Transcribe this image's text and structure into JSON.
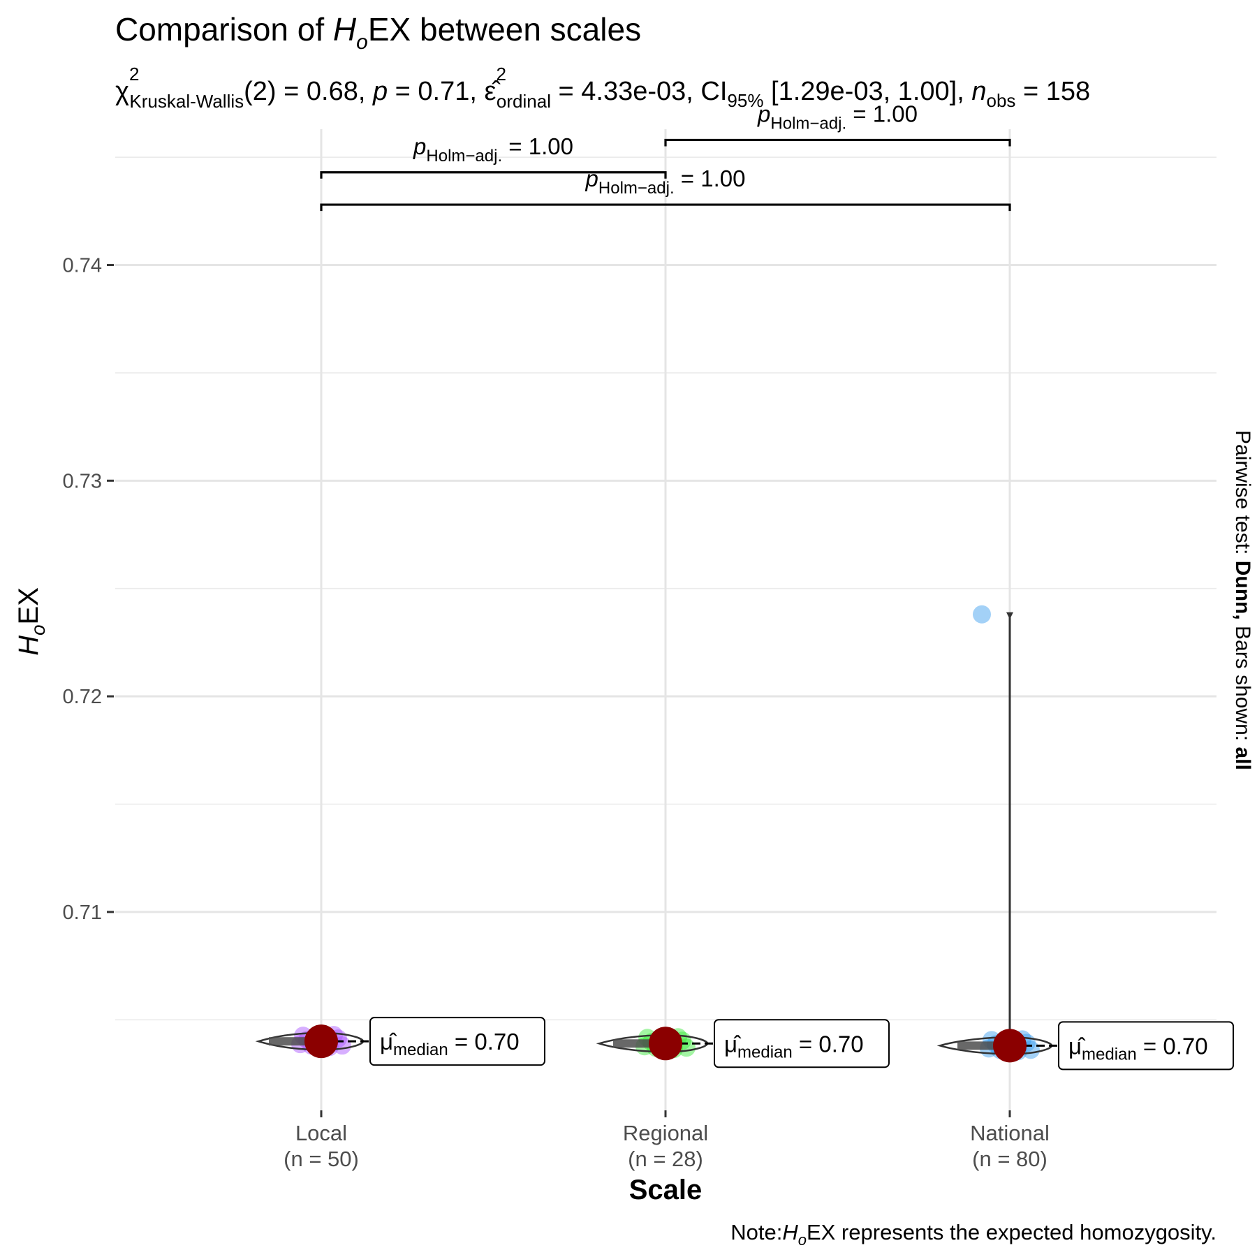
{
  "chart_data": {
    "type": "violin",
    "title": "Comparison of HₒEX between scales",
    "subtitle": "χ²Kruskal-Wallis(2) = 0.68, p = 0.71, ε̂²ordinal = 4.33e-03, CI95% [1.29e-03, 1.00], nobs = 158",
    "xlabel": "Scale",
    "ylabel": "HₒEX",
    "caption": "Note:HₒEX represents the expected homozygosity.",
    "side_label": "Pairwise test: Dunn, Bars shown: all",
    "ylim": [
      0.7008,
      0.7463
    ],
    "yticks": [
      0.71,
      0.72,
      0.73,
      0.74
    ],
    "ytick_labels": [
      "0.71",
      "0.72",
      "0.73",
      "0.74"
    ],
    "grid": true,
    "categories": [
      {
        "name": "Local",
        "n_label": "(n = 50)",
        "median": 0.704,
        "median_label": "μ̂median = 0.70",
        "color": "#a64dff"
      },
      {
        "name": "Regional",
        "n_label": "(n = 28)",
        "median": 0.7039,
        "median_label": "μ̂median = 0.70",
        "color": "#33e633"
      },
      {
        "name": "National",
        "n_label": "(n = 80)",
        "median": 0.7038,
        "median_label": "μ̂median = 0.70",
        "color": "#3399ee"
      }
    ],
    "outliers": [
      {
        "category": "National",
        "value": 0.7238
      }
    ],
    "comparisons": [
      {
        "groups": [
          "Regional",
          "National"
        ],
        "label": "pHolm−adj. = 1.00",
        "y": 0.7458
      },
      {
        "groups": [
          "Local",
          "Regional"
        ],
        "label": "pHolm−adj. = 1.00",
        "y": 0.7443
      },
      {
        "groups": [
          "Local",
          "National"
        ],
        "label": "pHolm−adj. = 1.00",
        "y": 0.7428
      }
    ],
    "median_point_color": "#8b0000"
  }
}
